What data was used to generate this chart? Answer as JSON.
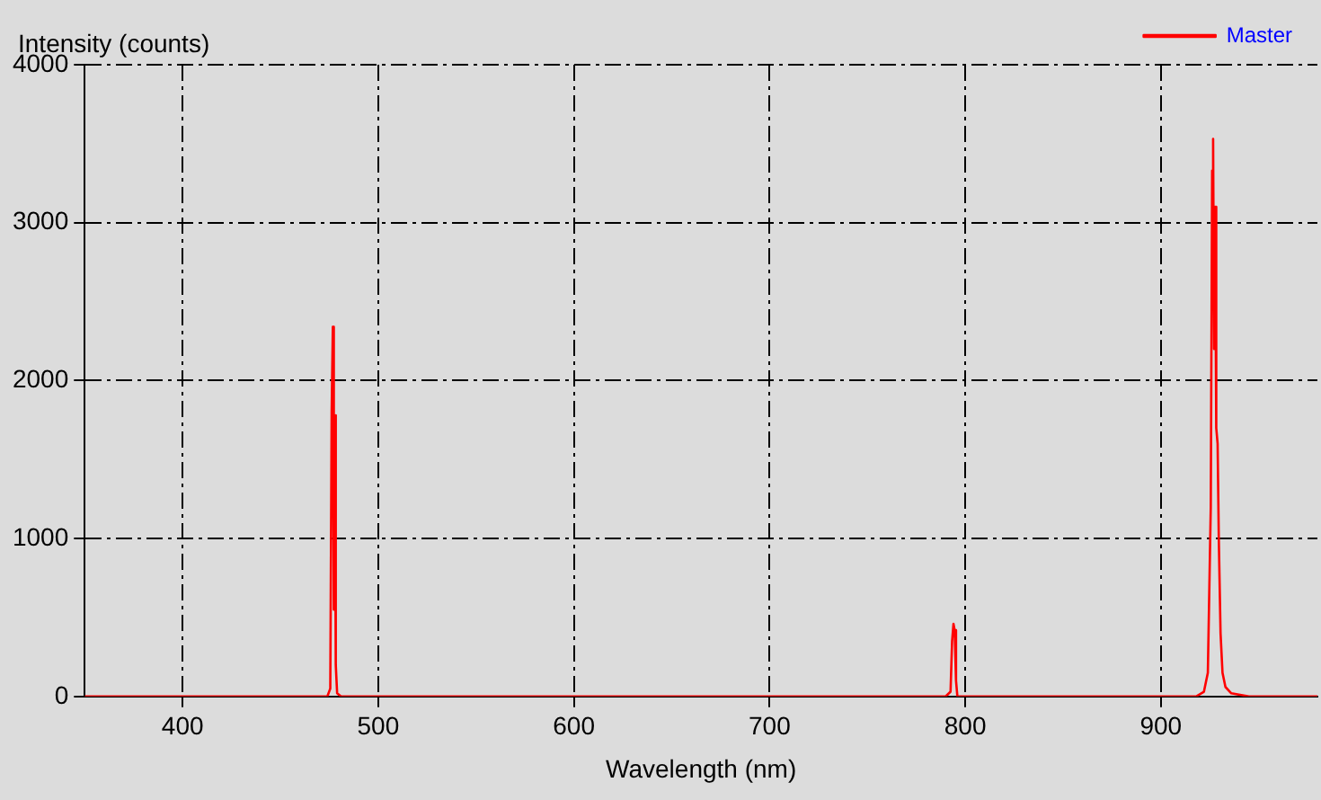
{
  "chart_data": {
    "type": "line",
    "xlabel": "Wavelength (nm)",
    "ylabel": "Intensity (counts)",
    "series": [
      {
        "name": "Master",
        "color": "#ff0000",
        "x": [
          350,
          450,
          452,
          470,
          474,
          475.5,
          476.2,
          476.8,
          477.3,
          477.8,
          478.3,
          479,
          481,
          500,
          600,
          700,
          790,
          792.5,
          793.3,
          794,
          794.6,
          795.3,
          796,
          800,
          900,
          918,
          922,
          924,
          925.5,
          926.2,
          926.7,
          927.2,
          927.7,
          928.3,
          929,
          929.6,
          930.5,
          931.5,
          933,
          936,
          945,
          980
        ],
        "values": [
          0,
          0,
          0,
          0,
          0,
          50,
          1800,
          2340,
          550,
          1780,
          200,
          20,
          0,
          0,
          0,
          0,
          0,
          30,
          350,
          460,
          420,
          100,
          0,
          0,
          0,
          0,
          30,
          150,
          1200,
          3330,
          3530,
          2200,
          3100,
          1700,
          1600,
          1000,
          400,
          150,
          60,
          20,
          0,
          0
        ]
      }
    ],
    "xlim": [
      350,
      980
    ],
    "xticks": [
      400,
      500,
      600,
      700,
      800,
      900
    ],
    "ylim": [
      0,
      4000
    ],
    "yticks": [
      0,
      1000,
      2000,
      3000,
      4000
    ],
    "grid": true,
    "legend": "top right",
    "marker": "none",
    "line_style": "solid"
  }
}
